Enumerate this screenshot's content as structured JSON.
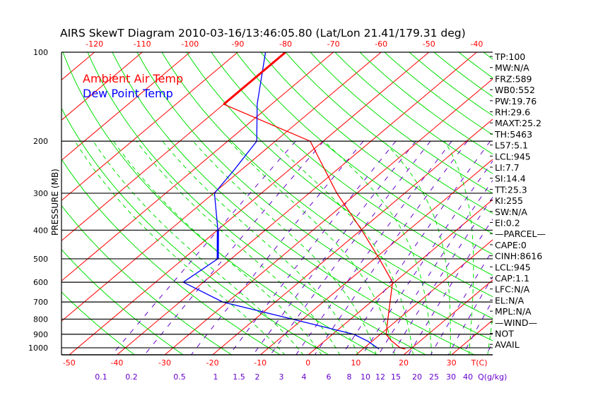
{
  "chart_data": {
    "type": "line",
    "title": "AIRS SkewT Diagram 2010-03-16/13:46:05.80 (Lat/Lon 21.41/179.31 deg)",
    "ylabel": "PRESSURE (MB)",
    "xlabel": "T(C)",
    "mixing_ratio_label": "Q(g/kg)",
    "ylim": [
      1057,
      100
    ],
    "y_scale": "log",
    "pressure_ticks": [
      100,
      200,
      300,
      400,
      500,
      600,
      700,
      800,
      900,
      1000
    ],
    "bottom_temp_ticks": [
      -50,
      -40,
      -30,
      -20,
      -10,
      0,
      10,
      20,
      30
    ],
    "top_temp_ticks": [
      -120,
      -110,
      -100,
      -90,
      -80,
      -70,
      -60,
      -50,
      -40
    ],
    "mixing_ratio_ticks": [
      "0.1",
      "0.2",
      "0.5",
      "1",
      "1.5",
      "2",
      "3",
      "4",
      "6",
      "8",
      "10",
      "12",
      "15",
      "20",
      "25",
      "30",
      "40"
    ],
    "isotherm_step": 10,
    "legend": [
      {
        "label": "Ambient Air Temp",
        "color": "#ff0000"
      },
      {
        "label": "Dew Point Temp",
        "color": "#0000ff"
      }
    ],
    "series": [
      {
        "name": "Ambient Air Temp",
        "color": "#ff0000",
        "points": [
          [
            100,
            -80
          ],
          [
            150,
            -80
          ],
          [
            200,
            -52.7
          ],
          [
            300,
            -34.2
          ],
          [
            400,
            -19.8
          ],
          [
            500,
            -9.0
          ],
          [
            600,
            -0.4
          ],
          [
            700,
            4.0
          ],
          [
            800,
            7.8
          ],
          [
            900,
            11.2
          ],
          [
            945,
            13.8
          ],
          [
            1000,
            17.5
          ],
          [
            1010,
            18.9
          ]
        ]
      },
      {
        "name": "Dew Point Temp",
        "color": "#0000ff",
        "points": [
          [
            100,
            -84.2
          ],
          [
            150,
            -73
          ],
          [
            200,
            -63.9
          ],
          [
            250,
            -61.5
          ],
          [
            300,
            -59.8
          ],
          [
            400,
            -49.9
          ],
          [
            500,
            -42.8
          ],
          [
            600,
            -44.2
          ],
          [
            700,
            -31
          ],
          [
            900,
            4.4
          ],
          [
            950,
            9.1
          ],
          [
            1010,
            13.4
          ]
        ]
      }
    ],
    "colors": {
      "isotherm": "#ff0000",
      "dry_adiabat": "#00e000",
      "moist_adiabat": "#00e000",
      "mixing_ratio": "#6600cc",
      "axis": "#000000"
    }
  },
  "indices": [
    "TP:100",
    "MW:N/A",
    "FRZ:589",
    "WB0:552",
    "PW:19.76",
    "RH:29.6",
    "MAXT:25.2",
    "TH:5463",
    "L57:5.1",
    "LCL:945",
    "LI:7.7",
    "SI:14.4",
    "TT:25.3",
    "KI:255",
    "SW:N/A",
    "EI:0.2",
    "—PARCEL—",
    "CAPE:0",
    "CINH:8616",
    "LCL:945",
    "CAP:1.1",
    "LFC:N/A",
    "EL:N/A",
    "MPL:N/A",
    "—WIND—",
    "NOT",
    "AVAIL"
  ]
}
